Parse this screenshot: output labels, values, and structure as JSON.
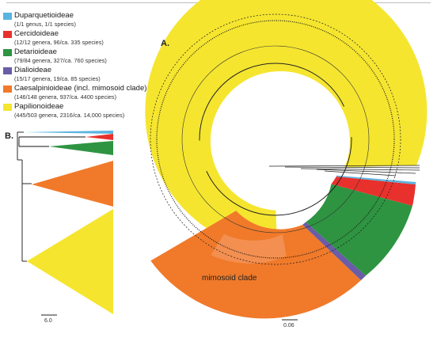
{
  "legend": [
    {
      "name": "Duparquetioideae",
      "detail": "(1/1 genus, 1/1 species)",
      "color": "#5ab4e0"
    },
    {
      "name": "Cercidoideae",
      "detail": "(12/12 genera, 96/ca. 335 species)",
      "color": "#e8312c"
    },
    {
      "name": "Detarioideae",
      "detail": "(79/84 genera, 327/ca. 760 species)",
      "color": "#2e9441"
    },
    {
      "name": "Dialioideae",
      "detail": "(15/17 genera, 19/ca. 85 species)",
      "color": "#6a5ca6"
    },
    {
      "name": "Caesalpinioideae (incl. mimosoid clade)",
      "detail": "(146/148 genera, 937/ca. 4400 species)",
      "color": "#f07a2a"
    },
    {
      "name": "Papilionoideae",
      "detail": "(445/503 genera, 2316/ca. 14,000 species)",
      "color": "#f5e52f"
    }
  ],
  "panel_a": {
    "label": "A.",
    "scale_label": "0.06",
    "clade_label": "mimosoid clade"
  },
  "panel_b": {
    "label": "B.",
    "scale_label": "6.0"
  }
}
